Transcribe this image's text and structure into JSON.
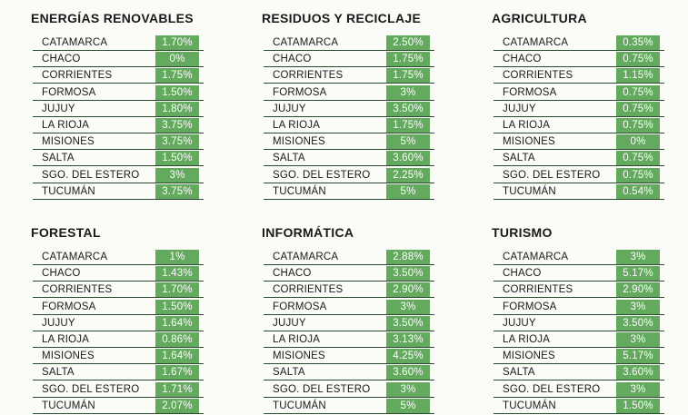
{
  "panels": [
    {
      "title": "ENERGÍAS RENOVABLES",
      "rows": [
        {
          "province": "CATAMARCA",
          "value": "1.70%"
        },
        {
          "province": "CHACO",
          "value": "0%"
        },
        {
          "province": "CORRIENTES",
          "value": "1.75%"
        },
        {
          "province": "FORMOSA",
          "value": "1.50%"
        },
        {
          "province": "JUJUY",
          "value": "1.80%"
        },
        {
          "province": "LA RIOJA",
          "value": "3.75%"
        },
        {
          "province": "MISIONES",
          "value": "3.75%"
        },
        {
          "province": "SALTA",
          "value": "1.50%"
        },
        {
          "province": "SGO. DEL ESTERO",
          "value": "3%"
        },
        {
          "province": "TUCUMÁN",
          "value": "3.75%"
        }
      ]
    },
    {
      "title": "RESIDUOS Y RECICLAJE",
      "rows": [
        {
          "province": "CATAMARCA",
          "value": "2.50%"
        },
        {
          "province": "CHACO",
          "value": "1.75%"
        },
        {
          "province": "CORRIENTES",
          "value": "1.75%"
        },
        {
          "province": "FORMOSA",
          "value": "3%"
        },
        {
          "province": "JUJUY",
          "value": "3.50%"
        },
        {
          "province": "LA RIOJA",
          "value": "1.75%"
        },
        {
          "province": "MISIONES",
          "value": "5%"
        },
        {
          "province": "SALTA",
          "value": "3.60%"
        },
        {
          "province": "SGO. DEL ESTERO",
          "value": "2.25%"
        },
        {
          "province": "TUCUMÁN",
          "value": "5%"
        }
      ]
    },
    {
      "title": "AGRICULTURA",
      "rows": [
        {
          "province": "CATAMARCA",
          "value": "0.35%"
        },
        {
          "province": "CHACO",
          "value": "0.75%"
        },
        {
          "province": "CORRIENTES",
          "value": "1.15%"
        },
        {
          "province": "FORMOSA",
          "value": "0.75%"
        },
        {
          "province": "JUJUY",
          "value": "0.75%"
        },
        {
          "province": "LA RIOJA",
          "value": "0.75%"
        },
        {
          "province": "MISIONES",
          "value": "0%"
        },
        {
          "province": "SALTA",
          "value": "0.75%"
        },
        {
          "province": "SGO. DEL ESTERO",
          "value": "0.75%"
        },
        {
          "province": "TUCUMÁN",
          "value": "0.54%"
        }
      ]
    },
    {
      "title": "FORESTAL",
      "rows": [
        {
          "province": "CATAMARCA",
          "value": "1%"
        },
        {
          "province": "CHACO",
          "value": "1.43%"
        },
        {
          "province": "CORRIENTES",
          "value": "1.70%"
        },
        {
          "province": "FORMOSA",
          "value": "1.50%"
        },
        {
          "province": "JUJUY",
          "value": "1.64%"
        },
        {
          "province": "LA RIOJA",
          "value": "0.86%"
        },
        {
          "province": "MISIONES",
          "value": "1.64%"
        },
        {
          "province": "SALTA",
          "value": "1.67%"
        },
        {
          "province": "SGO. DEL ESTERO",
          "value": "1.71%"
        },
        {
          "province": "TUCUMÁN",
          "value": "2.07%"
        }
      ]
    },
    {
      "title": "INFORMÁTICA",
      "rows": [
        {
          "province": "CATAMARCA",
          "value": "2.88%"
        },
        {
          "province": "CHACO",
          "value": "3.50%"
        },
        {
          "province": "CORRIENTES",
          "value": "2.90%"
        },
        {
          "province": "FORMOSA",
          "value": "3%"
        },
        {
          "province": "JUJUY",
          "value": "3.50%"
        },
        {
          "province": "LA RIOJA",
          "value": "3.13%"
        },
        {
          "province": "MISIONES",
          "value": "4.25%"
        },
        {
          "province": "SALTA",
          "value": "3.60%"
        },
        {
          "province": "SGO. DEL ESTERO",
          "value": "3%"
        },
        {
          "province": "TUCUMÁN",
          "value": "5%"
        }
      ]
    },
    {
      "title": "TURISMO",
      "rows": [
        {
          "province": "CATAMARCA",
          "value": "3%"
        },
        {
          "province": "CHACO",
          "value": "5.17%"
        },
        {
          "province": "CORRIENTES",
          "value": "2.90%"
        },
        {
          "province": "FORMOSA",
          "value": "3%"
        },
        {
          "province": "JUJUY",
          "value": "3.50%"
        },
        {
          "province": "LA RIOJA",
          "value": "3%"
        },
        {
          "province": "MISIONES",
          "value": "5.17%"
        },
        {
          "province": "SALTA",
          "value": "3.60%"
        },
        {
          "province": "SGO. DEL ESTERO",
          "value": "3%"
        },
        {
          "province": "TUCUMÁN",
          "value": "1.50%"
        }
      ]
    }
  ]
}
